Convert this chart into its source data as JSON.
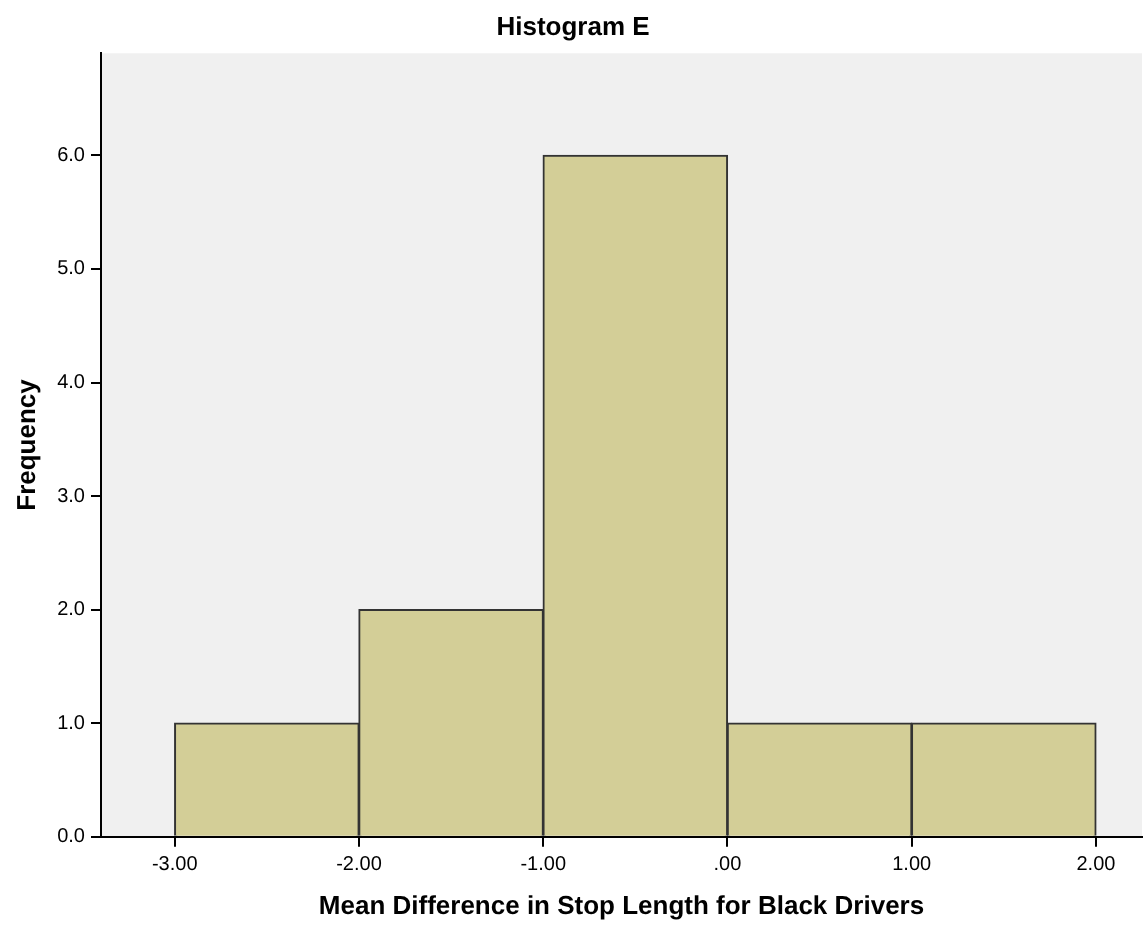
{
  "chart_data": {
    "type": "histogram",
    "title": "Histogram E",
    "xlabel": "Mean Difference in Stop Length for Black Drivers",
    "ylabel": "Frequency",
    "bins": [
      -3,
      -2,
      -1,
      0,
      1,
      2
    ],
    "values": [
      1,
      2,
      6,
      1,
      1
    ],
    "color": "#d3ce97",
    "xlim": [
      -3.4,
      2.25
    ],
    "ylim": [
      0,
      6.9
    ],
    "xticks": [
      {
        "value": -3,
        "label": "-3.00"
      },
      {
        "value": -2,
        "label": "-2.00"
      },
      {
        "value": -1,
        "label": "-1.00"
      },
      {
        "value": 0,
        "label": ".00"
      },
      {
        "value": 1,
        "label": "1.00"
      },
      {
        "value": 2,
        "label": "2.00"
      }
    ],
    "yticks": [
      {
        "value": 0,
        "label": "0.0"
      },
      {
        "value": 1,
        "label": "1.0"
      },
      {
        "value": 2,
        "label": "2.0"
      },
      {
        "value": 3,
        "label": "3.0"
      },
      {
        "value": 4,
        "label": "4.0"
      },
      {
        "value": 5,
        "label": "5.0"
      },
      {
        "value": 6,
        "label": "6.0"
      }
    ],
    "grid": false,
    "legend": false
  }
}
